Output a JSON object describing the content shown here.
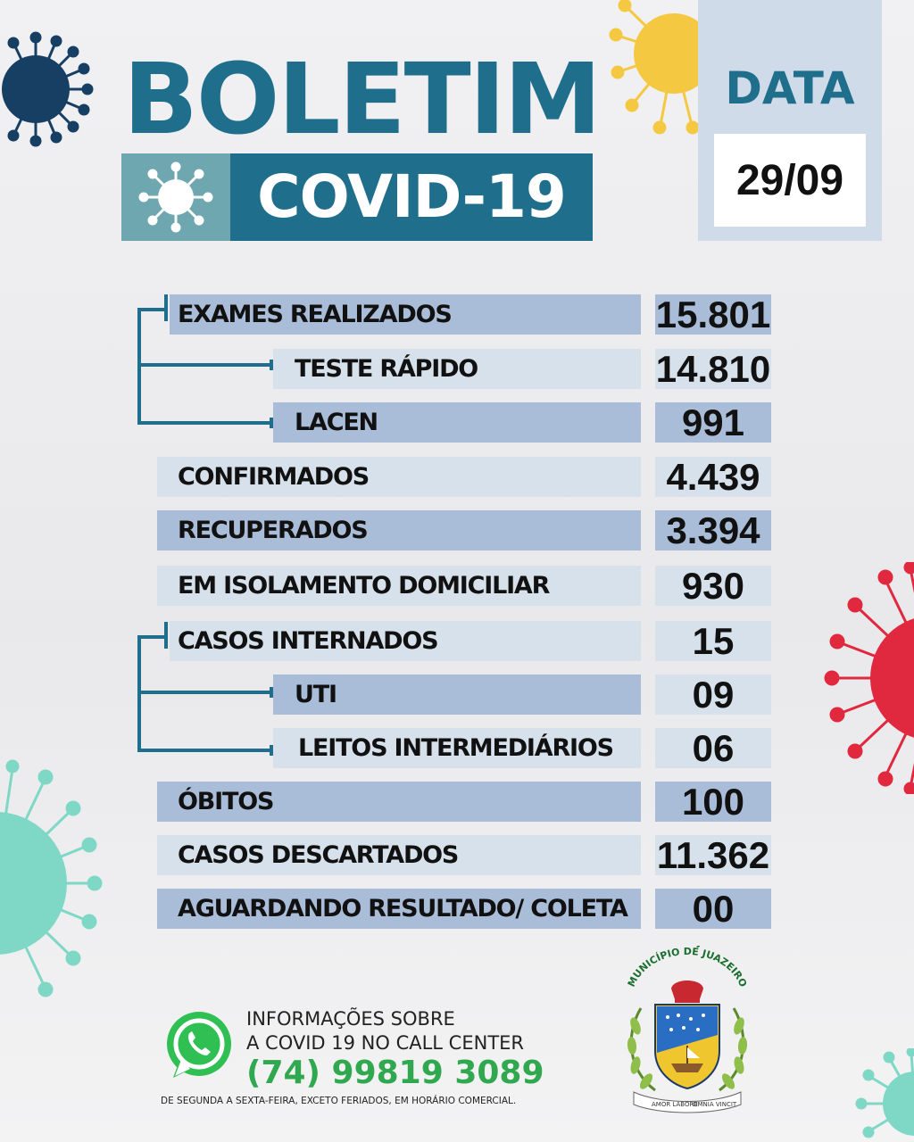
{
  "header": {
    "title": "BOLETIM",
    "subtitle": "COVID-19",
    "date_label": "DATA",
    "date_value": "29/09"
  },
  "table": {
    "rows": [
      {
        "label": "EXAMES REALIZADOS",
        "value": "15.801"
      },
      {
        "label": "TESTE RÁPIDO",
        "value": "14.810"
      },
      {
        "label": "LACEN",
        "value": "991"
      },
      {
        "label": "CONFIRMADOS",
        "value": "4.439"
      },
      {
        "label": "RECUPERADOS",
        "value": "3.394"
      },
      {
        "label": "EM ISOLAMENTO DOMICILIAR",
        "value": "930"
      },
      {
        "label": "CASOS INTERNADOS",
        "value": "15"
      },
      {
        "label": "UTI",
        "value": "09"
      },
      {
        "label": "LEITOS INTERMEDIÁRIOS",
        "value": "06"
      },
      {
        "label": "ÓBITOS",
        "value": "100"
      },
      {
        "label": "CASOS DESCARTADOS",
        "value": "11.362"
      },
      {
        "label": "AGUARDANDO RESULTADO/ COLETA",
        "value": "00"
      }
    ]
  },
  "footer": {
    "info_line1": "INFORMAÇÕES SOBRE",
    "info_line2": "A COVID 19 NO CALL CENTER",
    "phone": "(74) 99819 3089",
    "hours": "DE SEGUNDA A SEXTA-FEIRA, EXCETO FERIADOS, EM HORÁRIO COMERCIAL.",
    "crest_top_text": "MUNICÍPIO DE JUAZEIRO",
    "crest_motto_left": "AMOR LABORE",
    "crest_motto_right": "OMNIA VINCIT"
  },
  "colors": {
    "brand_teal": "#1f6f8c",
    "row_dark": "#aabdd8",
    "row_light": "#d6e1ec",
    "phone_green": "#2fa84f",
    "virus_navy": "#173f63",
    "virus_yellow": "#f5c842",
    "virus_red": "#e0293f",
    "virus_mint": "#7fd8c6"
  },
  "icons": [
    "virus-icon",
    "whatsapp-icon",
    "crest-icon"
  ]
}
